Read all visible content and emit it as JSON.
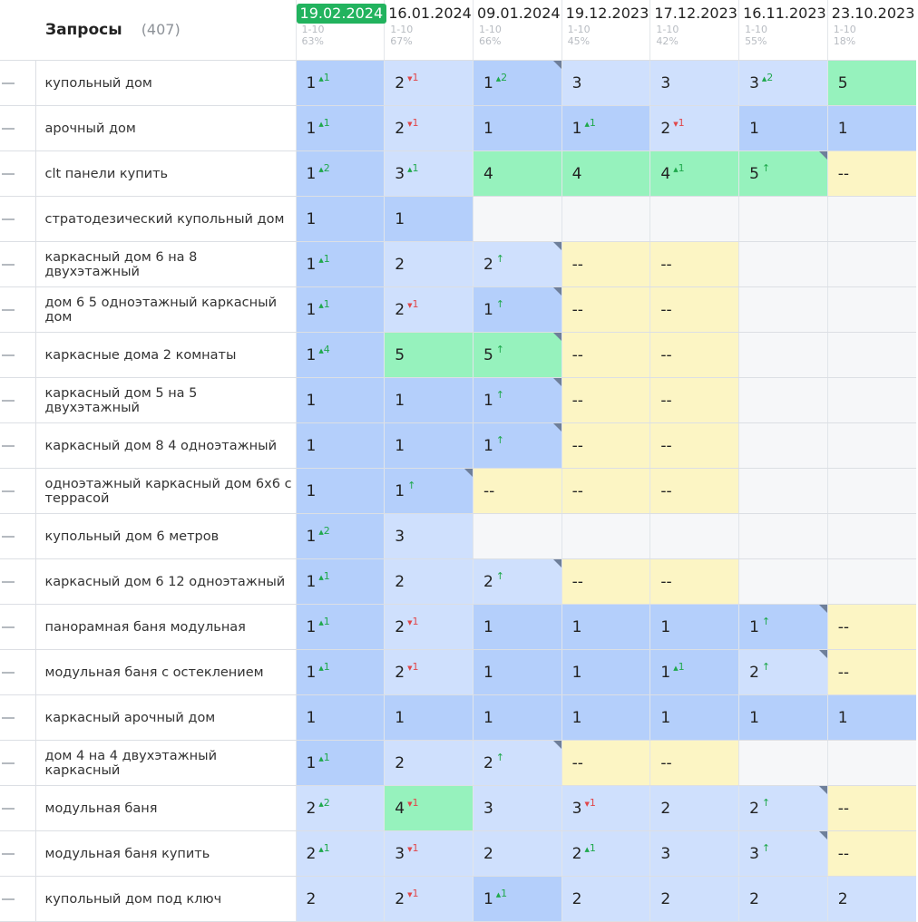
{
  "header": {
    "title": "Запросы",
    "count": "(407)"
  },
  "columns": [
    {
      "date": "19.02.2024",
      "range": "1-10",
      "percent": "63%",
      "active": true
    },
    {
      "date": "16.01.2024",
      "range": "1-10",
      "percent": "67%",
      "active": false
    },
    {
      "date": "09.01.2024",
      "range": "1-10",
      "percent": "66%",
      "active": false
    },
    {
      "date": "19.12.2023",
      "range": "1-10",
      "percent": "45%",
      "active": false
    },
    {
      "date": "17.12.2023",
      "range": "1-10",
      "percent": "42%",
      "active": false
    },
    {
      "date": "16.11.2023",
      "range": "1-10",
      "percent": "55%",
      "active": false
    },
    {
      "date": "23.10.2023",
      "range": "1-10",
      "percent": "18%",
      "active": false
    }
  ],
  "symbols": {
    "up_arrow": "▲",
    "down_arrow": "▼",
    "new_arrow": "↑"
  },
  "colors": {
    "top1": "#b4cffb",
    "top3": "#cfe0fd",
    "top5": "#96f2bd",
    "out": "#fcf5c4",
    "empty": "#f6f7f9",
    "active_date": "#22b35e",
    "up": "#1fa84c",
    "down": "#e0474b"
  },
  "rows": [
    {
      "query": "купольный дом",
      "cells": [
        {
          "pos": "1",
          "dir": "up",
          "delta": "1"
        },
        {
          "pos": "2",
          "dir": "down",
          "delta": "1"
        },
        {
          "pos": "1",
          "dir": "up",
          "delta": "2",
          "corner": true
        },
        {
          "pos": "3"
        },
        {
          "pos": "3"
        },
        {
          "pos": "3",
          "dir": "up",
          "delta": "2"
        },
        {
          "pos": "5"
        }
      ]
    },
    {
      "query": "арочный дом",
      "cells": [
        {
          "pos": "1",
          "dir": "up",
          "delta": "1"
        },
        {
          "pos": "2",
          "dir": "down",
          "delta": "1"
        },
        {
          "pos": "1"
        },
        {
          "pos": "1",
          "dir": "up",
          "delta": "1"
        },
        {
          "pos": "2",
          "dir": "down",
          "delta": "1"
        },
        {
          "pos": "1"
        },
        {
          "pos": "1"
        }
      ]
    },
    {
      "query": "clt панели купить",
      "cells": [
        {
          "pos": "1",
          "dir": "up",
          "delta": "2"
        },
        {
          "pos": "3",
          "dir": "up",
          "delta": "1"
        },
        {
          "pos": "4"
        },
        {
          "pos": "4"
        },
        {
          "pos": "4",
          "dir": "up",
          "delta": "1"
        },
        {
          "pos": "5",
          "dir": "new",
          "corner": true
        },
        {
          "pos": "--"
        }
      ]
    },
    {
      "query": "стратодезический купольный дом",
      "cells": [
        {
          "pos": "1"
        },
        {
          "pos": "1"
        },
        null,
        null,
        null,
        null,
        null
      ]
    },
    {
      "query": "каркасный дом 6 на 8 двухэтажный",
      "cells": [
        {
          "pos": "1",
          "dir": "up",
          "delta": "1"
        },
        {
          "pos": "2"
        },
        {
          "pos": "2",
          "dir": "new",
          "corner": true
        },
        {
          "pos": "--"
        },
        {
          "pos": "--"
        },
        null,
        null
      ]
    },
    {
      "query": "дом 6 5 одноэтажный каркасный дом",
      "cells": [
        {
          "pos": "1",
          "dir": "up",
          "delta": "1"
        },
        {
          "pos": "2",
          "dir": "down",
          "delta": "1"
        },
        {
          "pos": "1",
          "dir": "new",
          "corner": true
        },
        {
          "pos": "--"
        },
        {
          "pos": "--"
        },
        null,
        null
      ]
    },
    {
      "query": "каркасные дома 2 комнаты",
      "cells": [
        {
          "pos": "1",
          "dir": "up",
          "delta": "4"
        },
        {
          "pos": "5"
        },
        {
          "pos": "5",
          "dir": "new",
          "corner": true
        },
        {
          "pos": "--"
        },
        {
          "pos": "--"
        },
        null,
        null
      ]
    },
    {
      "query": "каркасный дом 5 на 5 двухэтажный",
      "cells": [
        {
          "pos": "1"
        },
        {
          "pos": "1"
        },
        {
          "pos": "1",
          "dir": "new",
          "corner": true
        },
        {
          "pos": "--"
        },
        {
          "pos": "--"
        },
        null,
        null
      ]
    },
    {
      "query": "каркасный дом 8 4 одноэтажный",
      "cells": [
        {
          "pos": "1"
        },
        {
          "pos": "1"
        },
        {
          "pos": "1",
          "dir": "new",
          "corner": true
        },
        {
          "pos": "--"
        },
        {
          "pos": "--"
        },
        null,
        null
      ]
    },
    {
      "query": "одноэтажный каркасный дом 6х6 с террасой",
      "cells": [
        {
          "pos": "1"
        },
        {
          "pos": "1",
          "dir": "new",
          "corner": true
        },
        {
          "pos": "--"
        },
        {
          "pos": "--"
        },
        {
          "pos": "--"
        },
        null,
        null
      ]
    },
    {
      "query": "купольный дом 6 метров",
      "cells": [
        {
          "pos": "1",
          "dir": "up",
          "delta": "2"
        },
        {
          "pos": "3"
        },
        null,
        null,
        null,
        null,
        null
      ]
    },
    {
      "query": "каркасный дом 6 12 одноэтажный",
      "cells": [
        {
          "pos": "1",
          "dir": "up",
          "delta": "1"
        },
        {
          "pos": "2"
        },
        {
          "pos": "2",
          "dir": "new",
          "corner": true
        },
        {
          "pos": "--"
        },
        {
          "pos": "--"
        },
        null,
        null
      ]
    },
    {
      "query": "панорамная баня модульная",
      "cells": [
        {
          "pos": "1",
          "dir": "up",
          "delta": "1"
        },
        {
          "pos": "2",
          "dir": "down",
          "delta": "1"
        },
        {
          "pos": "1"
        },
        {
          "pos": "1"
        },
        {
          "pos": "1"
        },
        {
          "pos": "1",
          "dir": "new",
          "corner": true
        },
        {
          "pos": "--"
        }
      ]
    },
    {
      "query": "модульная баня с остеклением",
      "cells": [
        {
          "pos": "1",
          "dir": "up",
          "delta": "1"
        },
        {
          "pos": "2",
          "dir": "down",
          "delta": "1"
        },
        {
          "pos": "1"
        },
        {
          "pos": "1"
        },
        {
          "pos": "1",
          "dir": "up",
          "delta": "1"
        },
        {
          "pos": "2",
          "dir": "new",
          "corner": true
        },
        {
          "pos": "--"
        }
      ]
    },
    {
      "query": "каркасный арочный дом",
      "cells": [
        {
          "pos": "1"
        },
        {
          "pos": "1"
        },
        {
          "pos": "1"
        },
        {
          "pos": "1"
        },
        {
          "pos": "1"
        },
        {
          "pos": "1"
        },
        {
          "pos": "1"
        }
      ]
    },
    {
      "query": "дом 4 на 4 двухэтажный каркасный",
      "cells": [
        {
          "pos": "1",
          "dir": "up",
          "delta": "1"
        },
        {
          "pos": "2"
        },
        {
          "pos": "2",
          "dir": "new",
          "corner": true
        },
        {
          "pos": "--"
        },
        {
          "pos": "--"
        },
        null,
        null
      ]
    },
    {
      "query": "модульная баня",
      "cells": [
        {
          "pos": "2",
          "dir": "up",
          "delta": "2"
        },
        {
          "pos": "4",
          "dir": "down",
          "delta": "1"
        },
        {
          "pos": "3"
        },
        {
          "pos": "3",
          "dir": "down",
          "delta": "1"
        },
        {
          "pos": "2"
        },
        {
          "pos": "2",
          "dir": "new",
          "corner": true
        },
        {
          "pos": "--"
        }
      ]
    },
    {
      "query": "модульная баня купить",
      "cells": [
        {
          "pos": "2",
          "dir": "up",
          "delta": "1"
        },
        {
          "pos": "3",
          "dir": "down",
          "delta": "1"
        },
        {
          "pos": "2"
        },
        {
          "pos": "2",
          "dir": "up",
          "delta": "1"
        },
        {
          "pos": "3"
        },
        {
          "pos": "3",
          "dir": "new",
          "corner": true
        },
        {
          "pos": "--"
        }
      ]
    },
    {
      "query": "купольный дом под ключ",
      "cells": [
        {
          "pos": "2"
        },
        {
          "pos": "2",
          "dir": "down",
          "delta": "1"
        },
        {
          "pos": "1",
          "dir": "up",
          "delta": "1"
        },
        {
          "pos": "2"
        },
        {
          "pos": "2"
        },
        {
          "pos": "2"
        },
        {
          "pos": "2"
        }
      ]
    }
  ]
}
